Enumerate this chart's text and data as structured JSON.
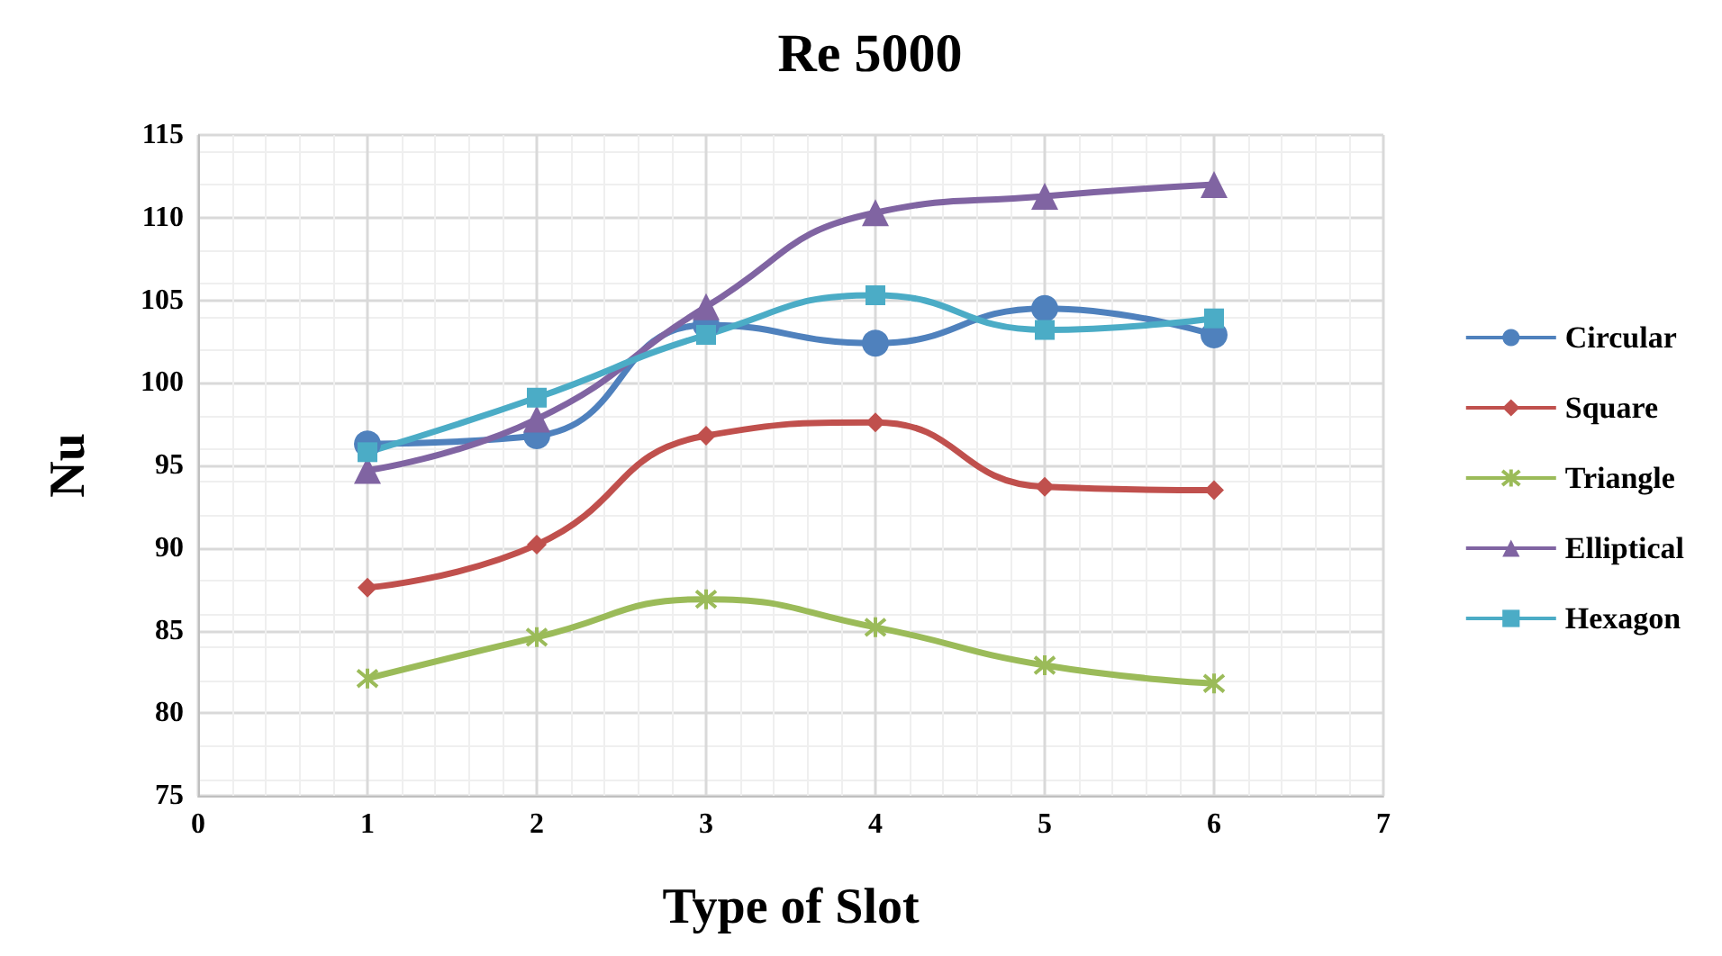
{
  "chart_data": {
    "type": "line",
    "title": "Re 5000",
    "xlabel": "Type of Slot",
    "ylabel": "Nu",
    "x": [
      1,
      2,
      3,
      4,
      5,
      6
    ],
    "xlim": [
      0,
      7
    ],
    "xticks": [
      0,
      1,
      2,
      3,
      4,
      5,
      6,
      7
    ],
    "ylim": [
      75,
      115
    ],
    "yticks": [
      75,
      80,
      85,
      90,
      95,
      100,
      105,
      110,
      115
    ],
    "grid": true,
    "legend": "right",
    "series": [
      {
        "name": "Circular",
        "color": "#4f81bd",
        "marker": "circle",
        "values": [
          96.3,
          96.8,
          103.5,
          102.4,
          104.5,
          102.9
        ]
      },
      {
        "name": "Square",
        "color": "#c0504d",
        "marker": "diamond",
        "values": [
          87.6,
          90.2,
          96.8,
          97.6,
          93.7,
          93.5
        ]
      },
      {
        "name": "Triangle",
        "color": "#9bbb59",
        "marker": "cross",
        "values": [
          82.1,
          84.6,
          86.9,
          85.2,
          82.9,
          81.8
        ]
      },
      {
        "name": "Elliptical",
        "color": "#8064a2",
        "marker": "triangle",
        "values": [
          94.7,
          97.8,
          104.6,
          110.3,
          111.3,
          112.0
        ]
      },
      {
        "name": "Hexagon",
        "color": "#4bacc6",
        "marker": "square",
        "values": [
          95.8,
          99.1,
          102.9,
          105.3,
          103.2,
          103.9
        ]
      }
    ]
  }
}
